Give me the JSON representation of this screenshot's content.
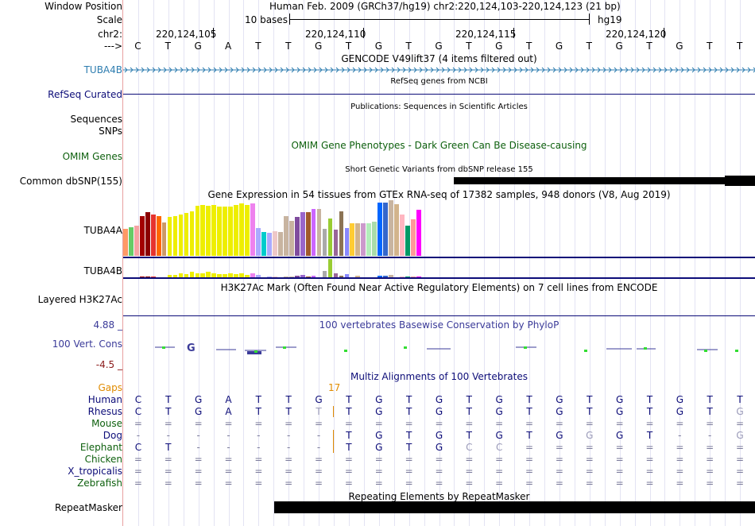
{
  "header": {
    "window_position_label": "Window Position",
    "scale_label": "Scale",
    "chr_label": "chr2:",
    "strand_label": "--->",
    "title": "Human Feb. 2009 (GRCh37/hg19)   chr2:220,124,103-220,124,123 (21 bp)",
    "scale_text": "10 bases",
    "assembly": "hg19",
    "positions": [
      "220,124,105",
      "220,124,110",
      "220,124,115",
      "220,124,120"
    ]
  },
  "sequence": [
    "C",
    "T",
    "G",
    "A",
    "T",
    "T",
    "G",
    "T",
    "G",
    "T",
    "G",
    "T",
    "G",
    "T",
    "G",
    "T",
    "G",
    "T",
    "G",
    "T",
    "T"
  ],
  "tracks": {
    "gencode": {
      "title": "GENCODE V49lift37 (4 items filtered out)",
      "label": "TUBA4B",
      "color": "#2e7db0"
    },
    "refseq": {
      "title": "RefSeq genes from NCBI",
      "label": "RefSeq Curated",
      "color": "#0c0c78"
    },
    "publications": {
      "title": "Publications: Sequences in Scientific Articles",
      "label1": "Sequences",
      "label2": "SNPs"
    },
    "omim": {
      "title": "OMIM Gene Phenotypes - Dark Green Can Be Disease-causing",
      "label": "OMIM Genes",
      "color": "#0e600e"
    },
    "dbsnp": {
      "title": "Short Genetic Variants from dbSNP release 155",
      "label": "Common dbSNP(155)"
    },
    "gtex": {
      "title": "Gene Expression in 54 tissues from GTEx RNA-seq of 17382 samples, 948 donors (V8, Aug 2019)",
      "gene1": "TUBA4A",
      "gene2": "TUBA4B",
      "colors": [
        "#ff9966",
        "#66cc66",
        "#f5a3a3",
        "#a30000",
        "#8b0000",
        "#e6332e",
        "#ff6600",
        "#cc9966",
        "#eeee00",
        "#eeee00",
        "#eeee00",
        "#eeee00",
        "#eeee00",
        "#eeee00",
        "#eeee00",
        "#eeee00",
        "#eeee00",
        "#eeee00",
        "#eeee00",
        "#eeee00",
        "#eeee00",
        "#eeee00",
        "#eeee00",
        "#ee82ee",
        "#aaaaff",
        "#00cccc",
        "#aaaaff",
        "#eec8c8",
        "#c8b4a0",
        "#c8b4a0",
        "#c8b4a0",
        "#7f4c9e",
        "#9966cc",
        "#a05a2c",
        "#cc66ff",
        "#c8b4a0",
        "#aaaaaa",
        "#99cc33",
        "#996699",
        "#8b7355",
        "#8888ff",
        "#ffcc33",
        "#d2b48c",
        "#cc99cc",
        "#b3eebb",
        "#aaddaa",
        "#0066ff",
        "#3366cc",
        "#c8b4a0",
        "#d2b48c",
        "#ffb6c1",
        "#009966",
        "#ff9999",
        "#ff00ff"
      ],
      "values1": [
        49,
        52,
        55,
        71,
        78,
        75,
        71,
        60,
        70,
        71,
        75,
        77,
        80,
        90,
        91,
        90,
        92,
        88,
        89,
        88,
        92,
        95,
        92,
        95,
        50,
        43,
        42,
        44,
        43,
        71,
        63,
        70,
        79,
        79,
        85,
        85,
        48,
        67,
        47,
        80,
        50,
        58,
        58,
        58,
        58,
        61,
        96,
        96,
        100,
        93,
        74,
        55,
        66,
        83
      ],
      "values2": [
        0,
        0,
        0,
        1,
        1,
        1,
        0,
        0,
        3,
        3,
        5,
        4,
        6,
        5,
        5,
        6,
        5,
        4,
        4,
        5,
        4,
        5,
        3,
        5,
        3,
        0,
        1,
        1,
        0,
        1,
        1,
        2,
        3,
        1,
        2,
        0,
        7,
        21,
        5,
        2,
        4,
        0,
        2,
        0,
        0,
        0,
        2,
        2,
        3,
        0,
        1,
        1,
        1,
        1
      ]
    },
    "h3k27ac": {
      "title": "H3K27Ac Mark (Often Found Near Active Regulatory Elements) on 7 cell lines from ENCODE",
      "label": "Layered H3K27Ac"
    },
    "conservation": {
      "title": "100 vertebrates Basewise Conservation by PhyloP",
      "label": "100 Vert. Cons",
      "max": "4.88 _",
      "min": "-4.5 _",
      "color": "#3b3b99"
    },
    "multiz": {
      "title": "Multiz Alignments of 100 Vertebrates",
      "gaps_label": "Gaps",
      "gap_number": "17",
      "rows": [
        {
          "species": "Human",
          "color": "#0c0c78",
          "bases": [
            "C",
            "T",
            "G",
            "A",
            "T",
            "T",
            "G",
            "T",
            "G",
            "T",
            "G",
            "T",
            "G",
            "T",
            "G",
            "T",
            "G",
            "T",
            "G",
            "T",
            "T"
          ]
        },
        {
          "species": "Rhesus",
          "color": "#0c0c78",
          "bases": [
            "C",
            "T",
            "G",
            "A",
            "T",
            "T",
            "T",
            "T",
            "G",
            "T",
            "G",
            "T",
            "G",
            "T",
            "G",
            "T",
            "G",
            "T",
            "G",
            "T",
            "G"
          ]
        },
        {
          "species": "Mouse",
          "color": "#0e600e",
          "bases": [
            "=",
            "=",
            "=",
            "=",
            "=",
            "=",
            "=",
            "=",
            "=",
            "=",
            "=",
            "=",
            "=",
            "=",
            "=",
            "=",
            "=",
            "=",
            "=",
            "=",
            "="
          ]
        },
        {
          "species": "Dog",
          "color": "#0c0c78",
          "bases": [
            "-",
            "-",
            "-",
            "-",
            "-",
            "-",
            "-",
            "T",
            "G",
            "T",
            "G",
            "T",
            "G",
            "T",
            "G",
            "G",
            "G",
            "T",
            "-",
            "-",
            "G"
          ]
        },
        {
          "species": "Elephant",
          "color": "#0e600e",
          "bases": [
            "C",
            "T",
            "-",
            "-",
            "-",
            "-",
            "-",
            "T",
            "G",
            "T",
            "G",
            "C",
            "C",
            "=",
            "=",
            "=",
            "=",
            "=",
            "=",
            "=",
            "="
          ]
        },
        {
          "species": "Chicken",
          "color": "#0e600e",
          "bases": [
            "=",
            "=",
            "=",
            "=",
            "=",
            "=",
            "=",
            "=",
            "=",
            "=",
            "=",
            "=",
            "=",
            "=",
            "=",
            "=",
            "=",
            "=",
            "=",
            "=",
            "="
          ]
        },
        {
          "species": "X_tropicalis",
          "color": "#0c0c78",
          "bases": [
            "=",
            "=",
            "=",
            "=",
            "=",
            "=",
            "=",
            "=",
            "=",
            "=",
            "=",
            "=",
            "=",
            "=",
            "=",
            "=",
            "=",
            "=",
            "=",
            "=",
            "="
          ]
        },
        {
          "species": "Zebrafish",
          "color": "#0e600e",
          "bases": [
            "=",
            "=",
            "=",
            "=",
            "=",
            "=",
            "=",
            "=",
            "=",
            "=",
            "=",
            "=",
            "=",
            "=",
            "=",
            "=",
            "=",
            "=",
            "=",
            "=",
            "="
          ]
        }
      ]
    },
    "repeatmasker": {
      "title": "Repeating Elements by RepeatMasker",
      "label": "RepeatMasker"
    }
  }
}
